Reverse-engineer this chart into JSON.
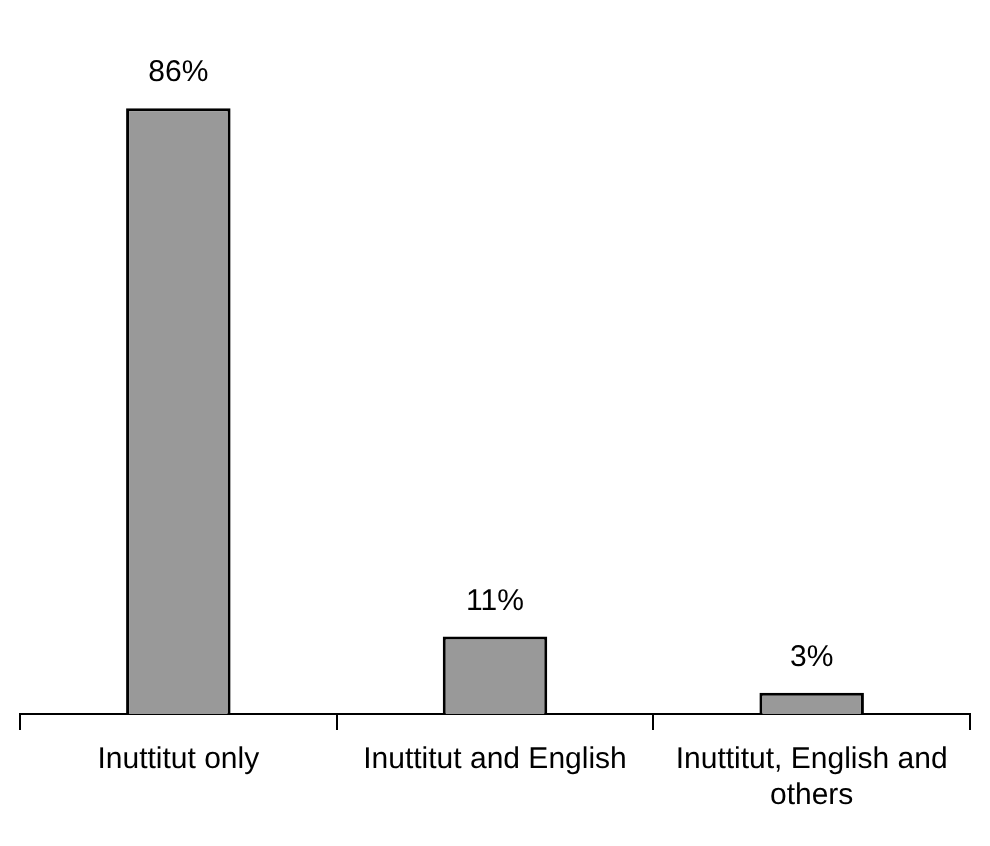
{
  "chart_data": {
    "type": "bar",
    "categories": [
      "Inuttitut only",
      "Inuttitut and English",
      "Inuttitut, English and others"
    ],
    "values": [
      86,
      11,
      3
    ],
    "color": "#999999",
    "value_labels": [
      "86%",
      "11%",
      "3%"
    ],
    "grid": false,
    "legend": false
  }
}
